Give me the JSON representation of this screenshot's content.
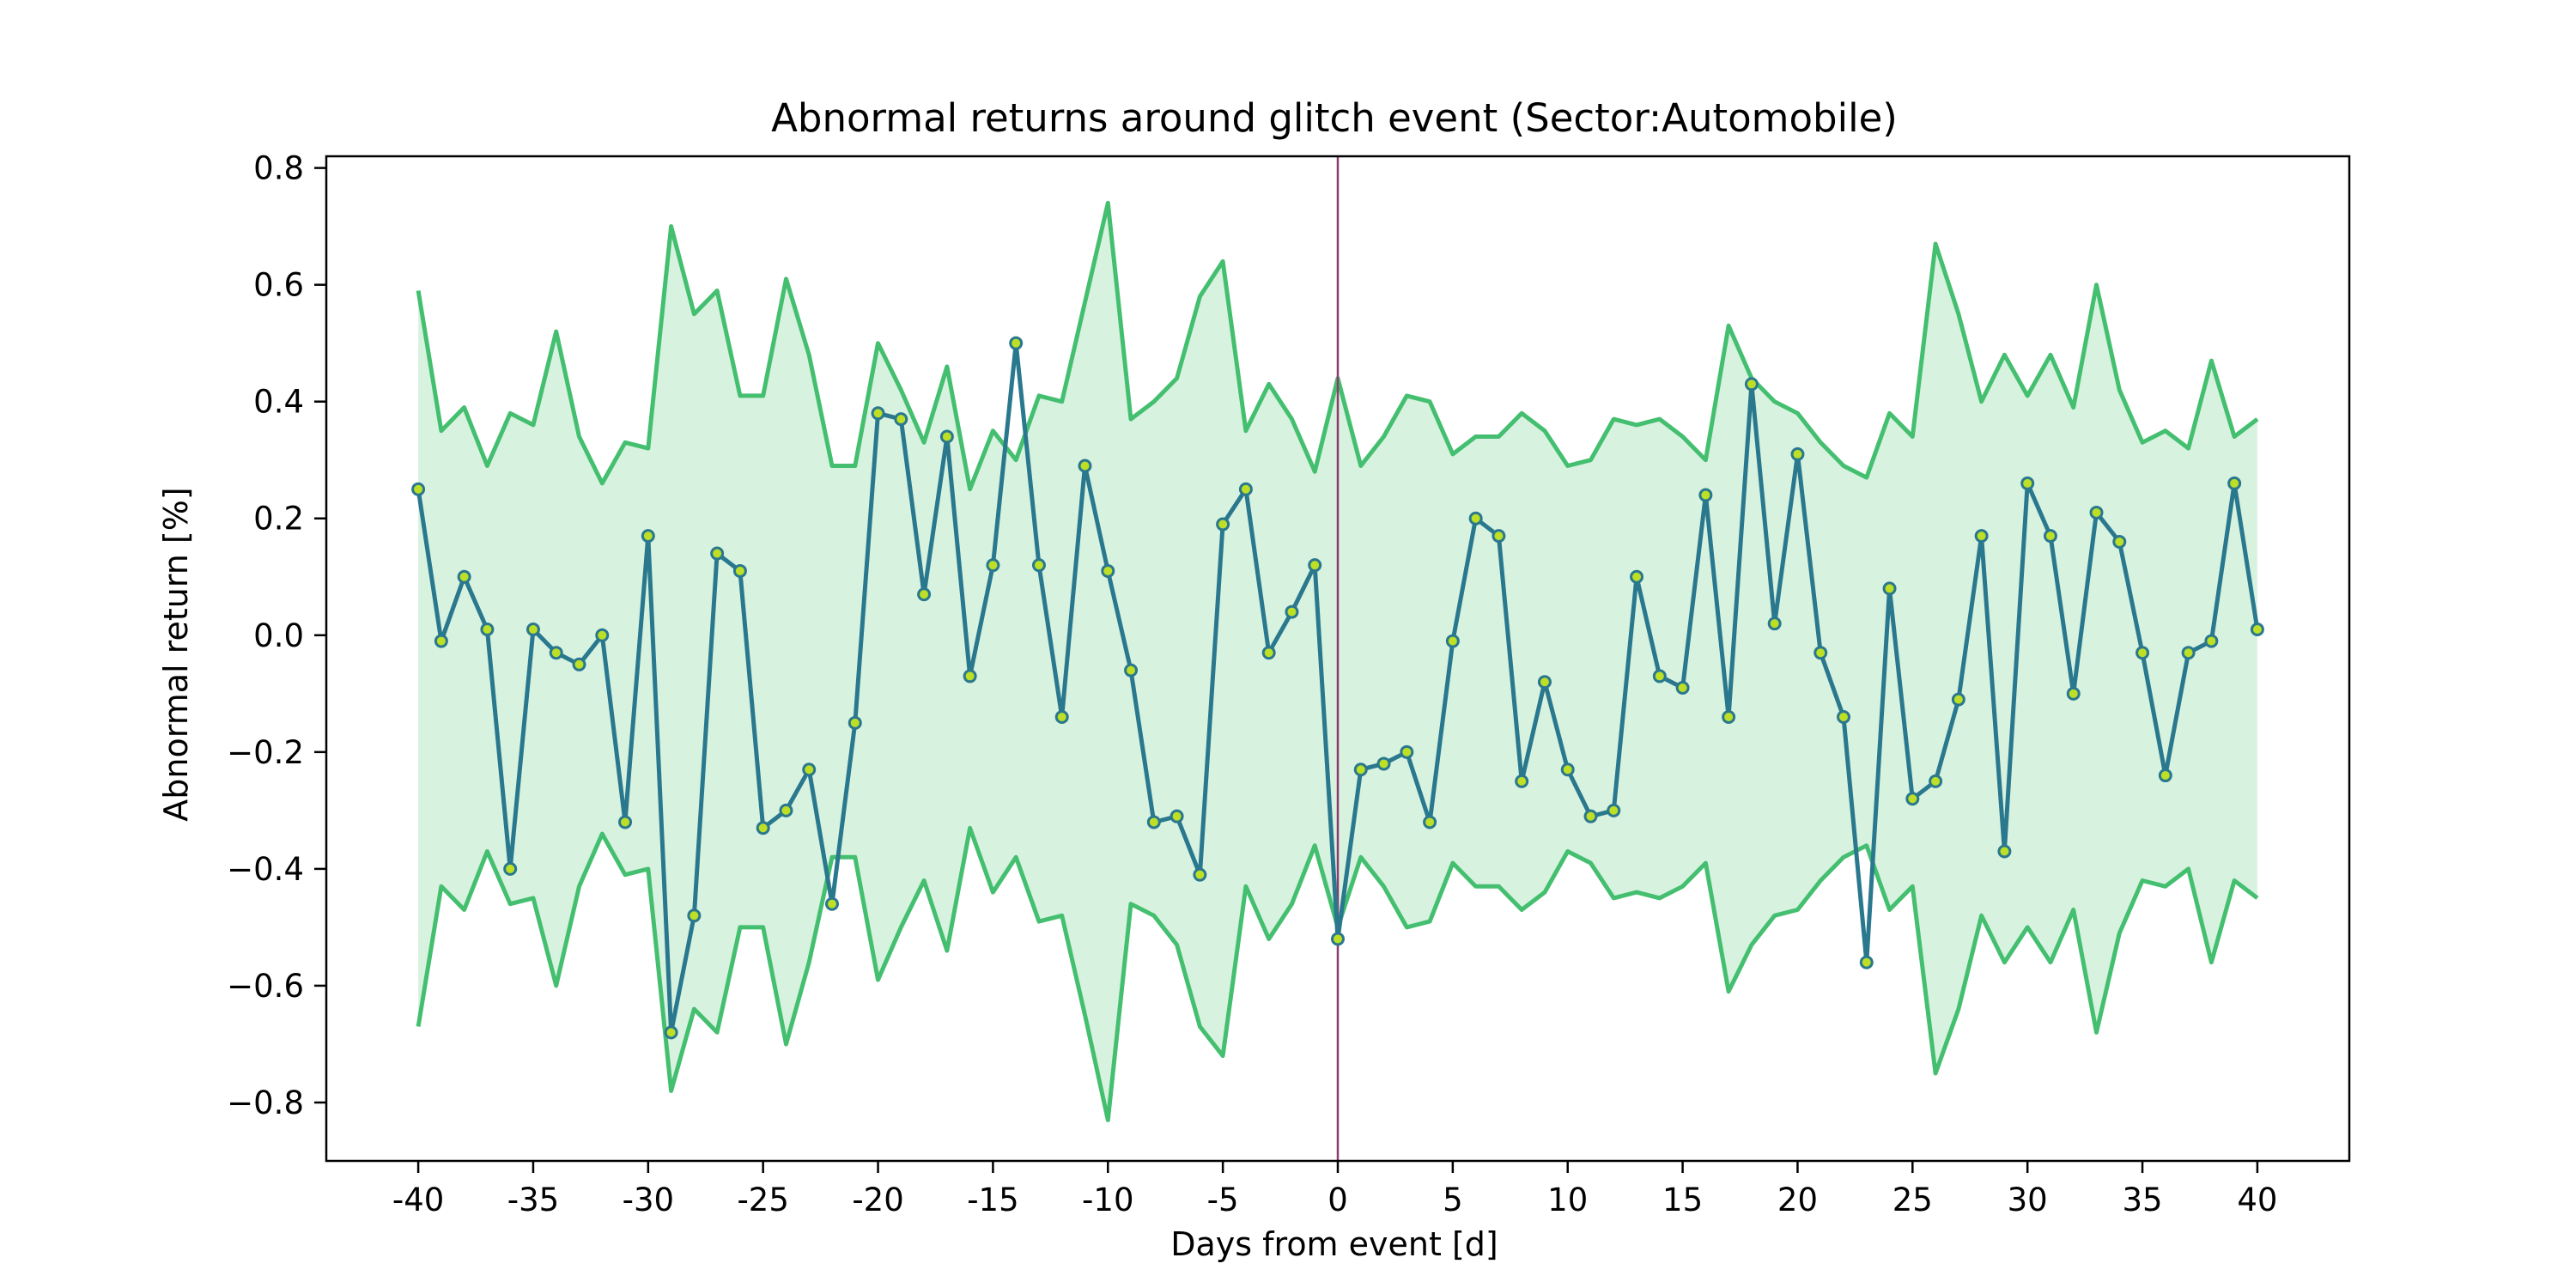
{
  "chart_data": {
    "type": "line",
    "title": "Abnormal returns around glitch event (Sector:Automobile)",
    "xlabel": "Days from event [d]",
    "ylabel": "Abnormal return [%]",
    "xlim": [
      -44,
      44
    ],
    "ylim": [
      -0.9,
      0.82
    ],
    "xticks": [
      -40,
      -35,
      -30,
      -25,
      -20,
      -15,
      -10,
      -5,
      0,
      5,
      10,
      15,
      20,
      25,
      30,
      35,
      40
    ],
    "yticks": [
      -0.8,
      -0.6,
      -0.4,
      -0.2,
      0.0,
      0.2,
      0.4,
      0.6,
      0.8
    ],
    "ytick_labels": [
      "−0.8",
      "−0.6",
      "−0.4",
      "−0.2",
      "0.0",
      "0.2",
      "0.4",
      "0.6",
      "0.8"
    ],
    "grid": false,
    "event_line_x": 0,
    "colors": {
      "series": "#2a788e",
      "marker_face": "#bddf26",
      "band_line": "#44bf70",
      "band_fill": "#d8f2e0",
      "event_line": "#8e3a6e"
    },
    "x": [
      -40,
      -39,
      -38,
      -37,
      -36,
      -35,
      -34,
      -33,
      -32,
      -31,
      -30,
      -29,
      -28,
      -27,
      -26,
      -25,
      -24,
      -23,
      -22,
      -21,
      -20,
      -19,
      -18,
      -17,
      -16,
      -15,
      -14,
      -13,
      -12,
      -11,
      -10,
      -9,
      -8,
      -7,
      -6,
      -5,
      -4,
      -3,
      -2,
      -1,
      0,
      1,
      2,
      3,
      4,
      5,
      6,
      7,
      8,
      9,
      10,
      11,
      12,
      13,
      14,
      15,
      16,
      17,
      18,
      19,
      20,
      21,
      22,
      23,
      24,
      25,
      26,
      27,
      28,
      29,
      30,
      31,
      32,
      33,
      34,
      35,
      36,
      37,
      38,
      39,
      40
    ],
    "series": [
      {
        "role": "mean",
        "values": [
          0.25,
          -0.01,
          0.1,
          0.01,
          -0.4,
          0.01,
          -0.03,
          -0.05,
          0.0,
          -0.32,
          0.17,
          -0.68,
          -0.48,
          0.14,
          0.11,
          -0.33,
          -0.3,
          -0.23,
          -0.46,
          -0.15,
          0.38,
          0.37,
          0.07,
          0.34,
          -0.07,
          0.12,
          0.5,
          0.12,
          -0.14,
          0.29,
          0.11,
          -0.06,
          -0.32,
          -0.31,
          -0.41,
          0.19,
          0.25,
          -0.03,
          0.04,
          0.12,
          -0.52,
          -0.23,
          -0.22,
          -0.2,
          -0.32,
          -0.01,
          0.2,
          0.17,
          -0.25,
          -0.08,
          -0.23,
          -0.31,
          -0.3,
          0.1,
          -0.07,
          -0.09,
          0.24,
          -0.14,
          0.43,
          0.02,
          0.31,
          -0.03,
          -0.14,
          -0.56,
          0.08,
          -0.28,
          -0.25,
          -0.11,
          0.17,
          -0.37,
          0.26,
          0.17,
          -0.1,
          0.21,
          0.16,
          -0.03,
          -0.24,
          -0.03,
          -0.01,
          0.26,
          0.01
        ]
      },
      {
        "role": "upper",
        "values": [
          0.59,
          0.35,
          0.39,
          0.29,
          0.38,
          0.36,
          0.52,
          0.34,
          0.26,
          0.33,
          0.32,
          0.7,
          0.55,
          0.59,
          0.41,
          0.41,
          0.61,
          0.48,
          0.29,
          0.29,
          0.5,
          0.42,
          0.33,
          0.46,
          0.25,
          0.35,
          0.3,
          0.41,
          0.4,
          0.57,
          0.74,
          0.37,
          0.4,
          0.44,
          0.58,
          0.64,
          0.35,
          0.43,
          0.37,
          0.28,
          0.44,
          0.29,
          0.34,
          0.41,
          0.4,
          0.31,
          0.34,
          0.34,
          0.38,
          0.35,
          0.29,
          0.3,
          0.37,
          0.36,
          0.37,
          0.34,
          0.3,
          0.53,
          0.44,
          0.4,
          0.38,
          0.33,
          0.29,
          0.27,
          0.38,
          0.34,
          0.67,
          0.55,
          0.4,
          0.48,
          0.41,
          0.48,
          0.39,
          0.6,
          0.42,
          0.33,
          0.35,
          0.32,
          0.47,
          0.34,
          0.37
        ]
      },
      {
        "role": "lower",
        "values": [
          -0.67,
          -0.43,
          -0.47,
          -0.37,
          -0.46,
          -0.45,
          -0.6,
          -0.43,
          -0.34,
          -0.41,
          -0.4,
          -0.78,
          -0.64,
          -0.68,
          -0.5,
          -0.5,
          -0.7,
          -0.56,
          -0.38,
          -0.38,
          -0.59,
          -0.5,
          -0.42,
          -0.54,
          -0.33,
          -0.44,
          -0.38,
          -0.49,
          -0.48,
          -0.65,
          -0.83,
          -0.46,
          -0.48,
          -0.53,
          -0.67,
          -0.72,
          -0.43,
          -0.52,
          -0.46,
          -0.36,
          -0.5,
          -0.38,
          -0.43,
          -0.5,
          -0.49,
          -0.39,
          -0.43,
          -0.43,
          -0.47,
          -0.44,
          -0.37,
          -0.39,
          -0.45,
          -0.44,
          -0.45,
          -0.43,
          -0.39,
          -0.61,
          -0.53,
          -0.48,
          -0.47,
          -0.42,
          -0.38,
          -0.36,
          -0.47,
          -0.43,
          -0.75,
          -0.64,
          -0.48,
          -0.56,
          -0.5,
          -0.56,
          -0.47,
          -0.68,
          -0.51,
          -0.42,
          -0.43,
          -0.4,
          -0.56,
          -0.42,
          -0.45
        ]
      }
    ]
  }
}
